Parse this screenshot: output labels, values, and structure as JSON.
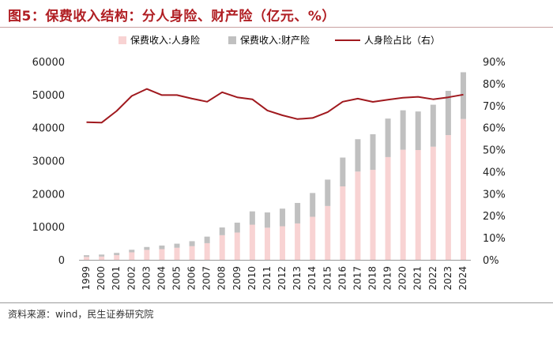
{
  "title": "图5：保费收入结构：分人身险、财产险（亿元、%）",
  "source": "资料来源：wind，民生证券研究院",
  "colors": {
    "life_bar": "#f8d3d3",
    "property_bar": "#c0c0c0",
    "ratio_line": "#a0191e",
    "axis_text": "#222222"
  },
  "chart_data": {
    "type": "bar",
    "stacked": true,
    "title": "",
    "xlabel": "",
    "ylabel": "",
    "legend_position": "top",
    "categories": [
      "1999",
      "2000",
      "2001",
      "2002",
      "2003",
      "2004",
      "2005",
      "2006",
      "2007",
      "2008",
      "2009",
      "2010",
      "2011",
      "2012",
      "2013",
      "2014",
      "2015",
      "2016",
      "2017",
      "2018",
      "2019",
      "2020",
      "2021",
      "2022",
      "2023",
      "2024"
    ],
    "series": [
      {
        "name": "保费收入:人身险",
        "axis": "left",
        "values": [
          880,
          990,
          1420,
          2270,
          3010,
          3230,
          3650,
          4130,
          5040,
          7450,
          8260,
          10630,
          9720,
          10160,
          11010,
          13030,
          16290,
          22230,
          26720,
          27240,
          31100,
          33330,
          33230,
          34250,
          37750,
          42630
        ]
      },
      {
        "name": "保费收入:财产险",
        "axis": "left",
        "values": [
          520,
          600,
          680,
          780,
          870,
          1090,
          1230,
          1510,
          1980,
          2340,
          2990,
          4030,
          4620,
          5330,
          6210,
          7200,
          7990,
          8720,
          9790,
          10770,
          11650,
          11930,
          11670,
          12700,
          13400,
          14150
        ]
      },
      {
        "name": "人身险占比（右）",
        "axis": "right",
        "type": "line",
        "values": [
          62.5,
          62.3,
          67.6,
          74.4,
          77.6,
          74.8,
          74.8,
          73.2,
          71.8,
          76.1,
          73.8,
          72.9,
          67.8,
          65.6,
          63.9,
          64.4,
          67.1,
          71.8,
          73.2,
          71.7,
          72.7,
          73.6,
          74.0,
          72.9,
          73.8,
          75.0
        ]
      }
    ],
    "y_left": {
      "min": 0,
      "max": 60000,
      "ticks": [
        "0",
        "10000",
        "20000",
        "30000",
        "40000",
        "50000",
        "60000"
      ]
    },
    "y_right": {
      "min": 0,
      "max": 90,
      "ticks": [
        "0%",
        "10%",
        "20%",
        "30%",
        "40%",
        "50%",
        "60%",
        "70%",
        "80%",
        "90%"
      ]
    },
    "grid": false
  }
}
